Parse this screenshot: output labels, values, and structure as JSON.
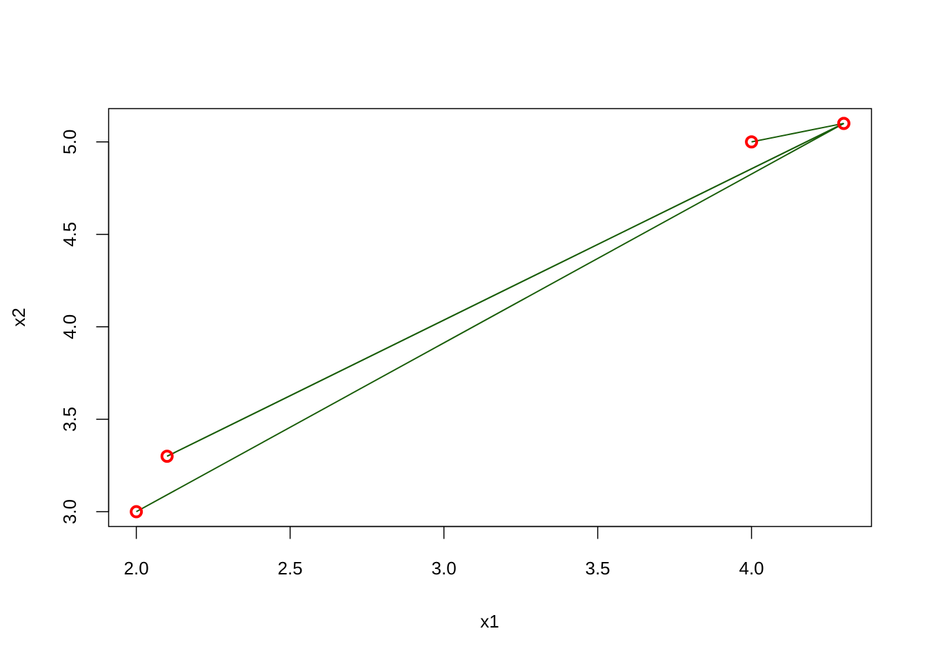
{
  "chart_data": {
    "type": "line",
    "title": "",
    "xlabel": "x1",
    "ylabel": "x2",
    "xlim": [
      1.91,
      4.39
    ],
    "ylim": [
      2.92,
      5.18
    ],
    "x_ticks": [
      2.0,
      2.5,
      3.0,
      3.5,
      4.0
    ],
    "x_tick_labels": [
      "2.0",
      "2.5",
      "3.0",
      "3.5",
      "4.0"
    ],
    "y_ticks": [
      3.0,
      3.5,
      4.0,
      4.5,
      5.0
    ],
    "y_tick_labels": [
      "3.0",
      "3.5",
      "4.0",
      "4.5",
      "5.0"
    ],
    "grid": false,
    "series": [
      {
        "x": [
          4.0,
          4.3,
          2.1,
          4.3,
          2.0
        ],
        "y": [
          5.0,
          5.1,
          3.3,
          5.1,
          3.0
        ],
        "line_color": "#1a5e0a",
        "marker": "open-circle",
        "marker_color": "#ff0000"
      }
    ]
  }
}
